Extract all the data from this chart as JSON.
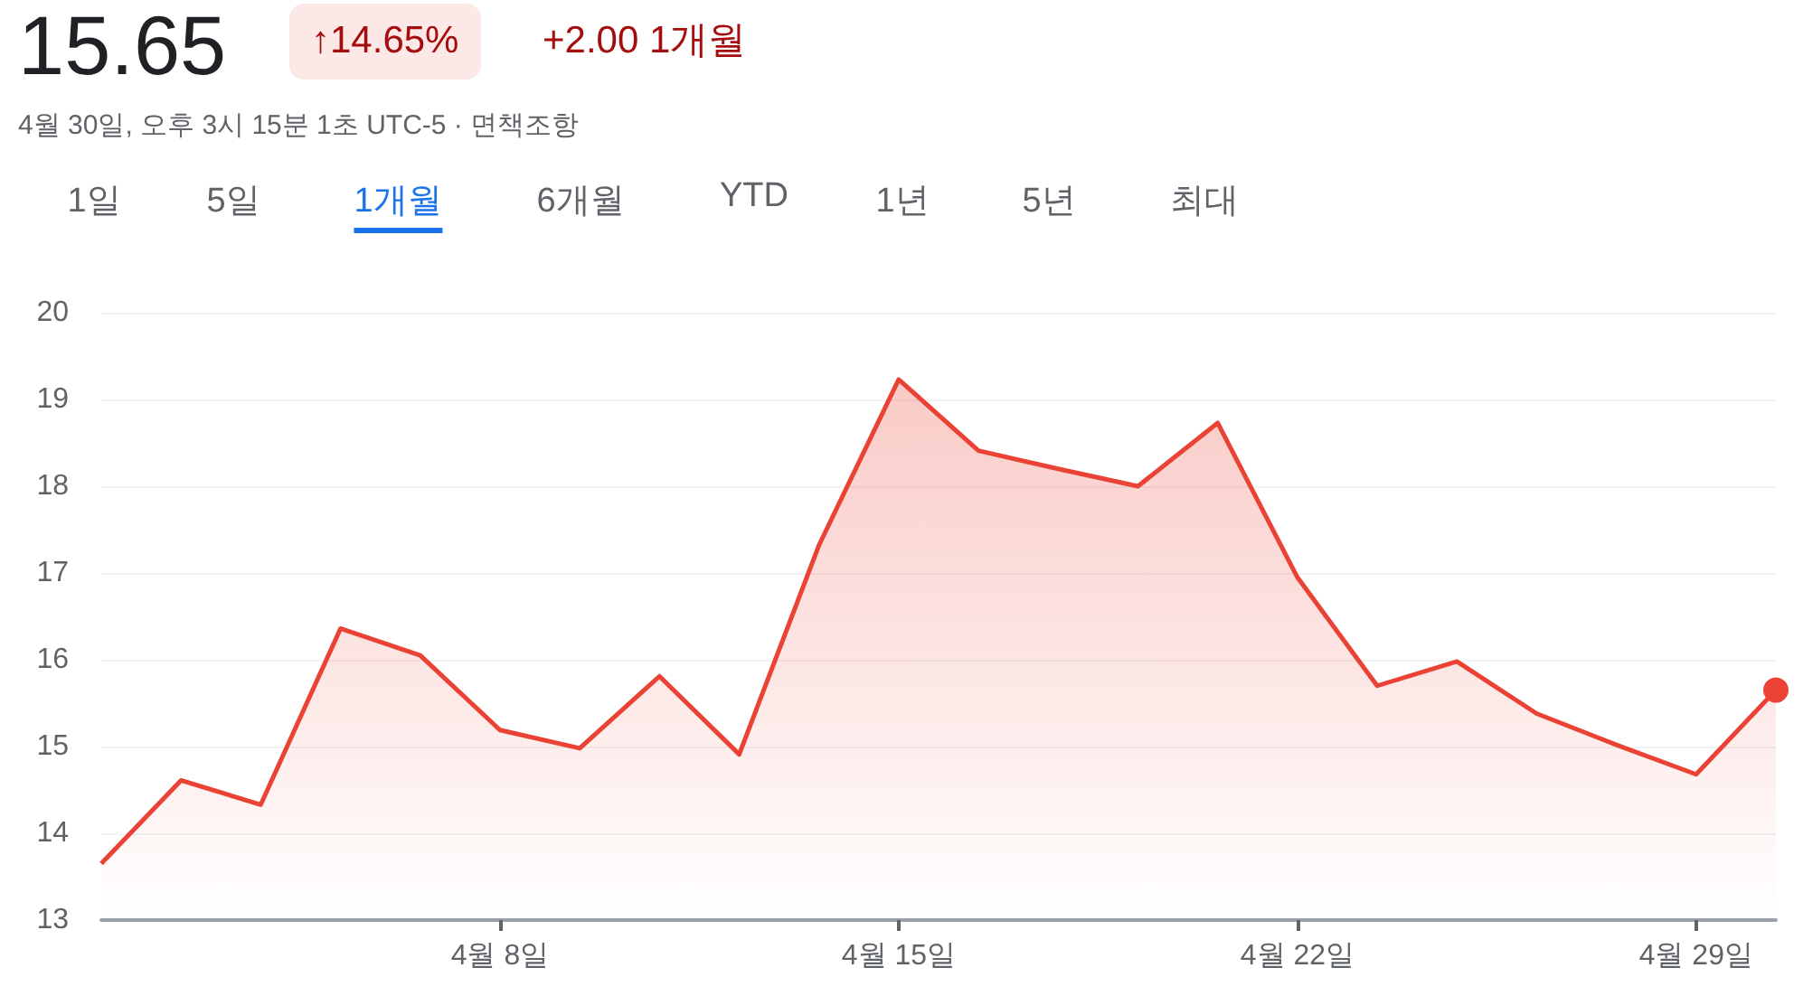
{
  "chart_data": {
    "type": "area",
    "title": "15.65",
    "subtitle": "4월 30일, 오후 3시 15분 1초 UTC-5 · 면책조항",
    "annotations": [
      "↑14.65%",
      "+2.00 1개월",
      "1일",
      "5일",
      "1개월",
      "6개월",
      "YTD",
      "1년",
      "5년",
      "최대"
    ],
    "categories": [
      null,
      null,
      null,
      null,
      null,
      "4월 8일",
      null,
      null,
      null,
      null,
      "4월 15일",
      null,
      null,
      null,
      null,
      "4월 22일",
      null,
      null,
      null,
      null,
      "4월 29일",
      null
    ],
    "series": [
      {
        "color": "#ea4335",
        "values": [
          13.65,
          14.61,
          14.33,
          16.36,
          16.05,
          15.19,
          14.98,
          15.81,
          14.91,
          17.32,
          19.23,
          18.41,
          18.2,
          18.0,
          18.73,
          16.95,
          15.7,
          15.98,
          15.38,
          15.02,
          14.68,
          15.65
        ]
      }
    ],
    "ylim": [
      13,
      20
    ],
    "yticks": [
      13,
      14,
      15,
      16,
      17,
      18,
      19,
      20
    ],
    "grid": "y",
    "marker": "none",
    "line_style": "solid"
  }
}
